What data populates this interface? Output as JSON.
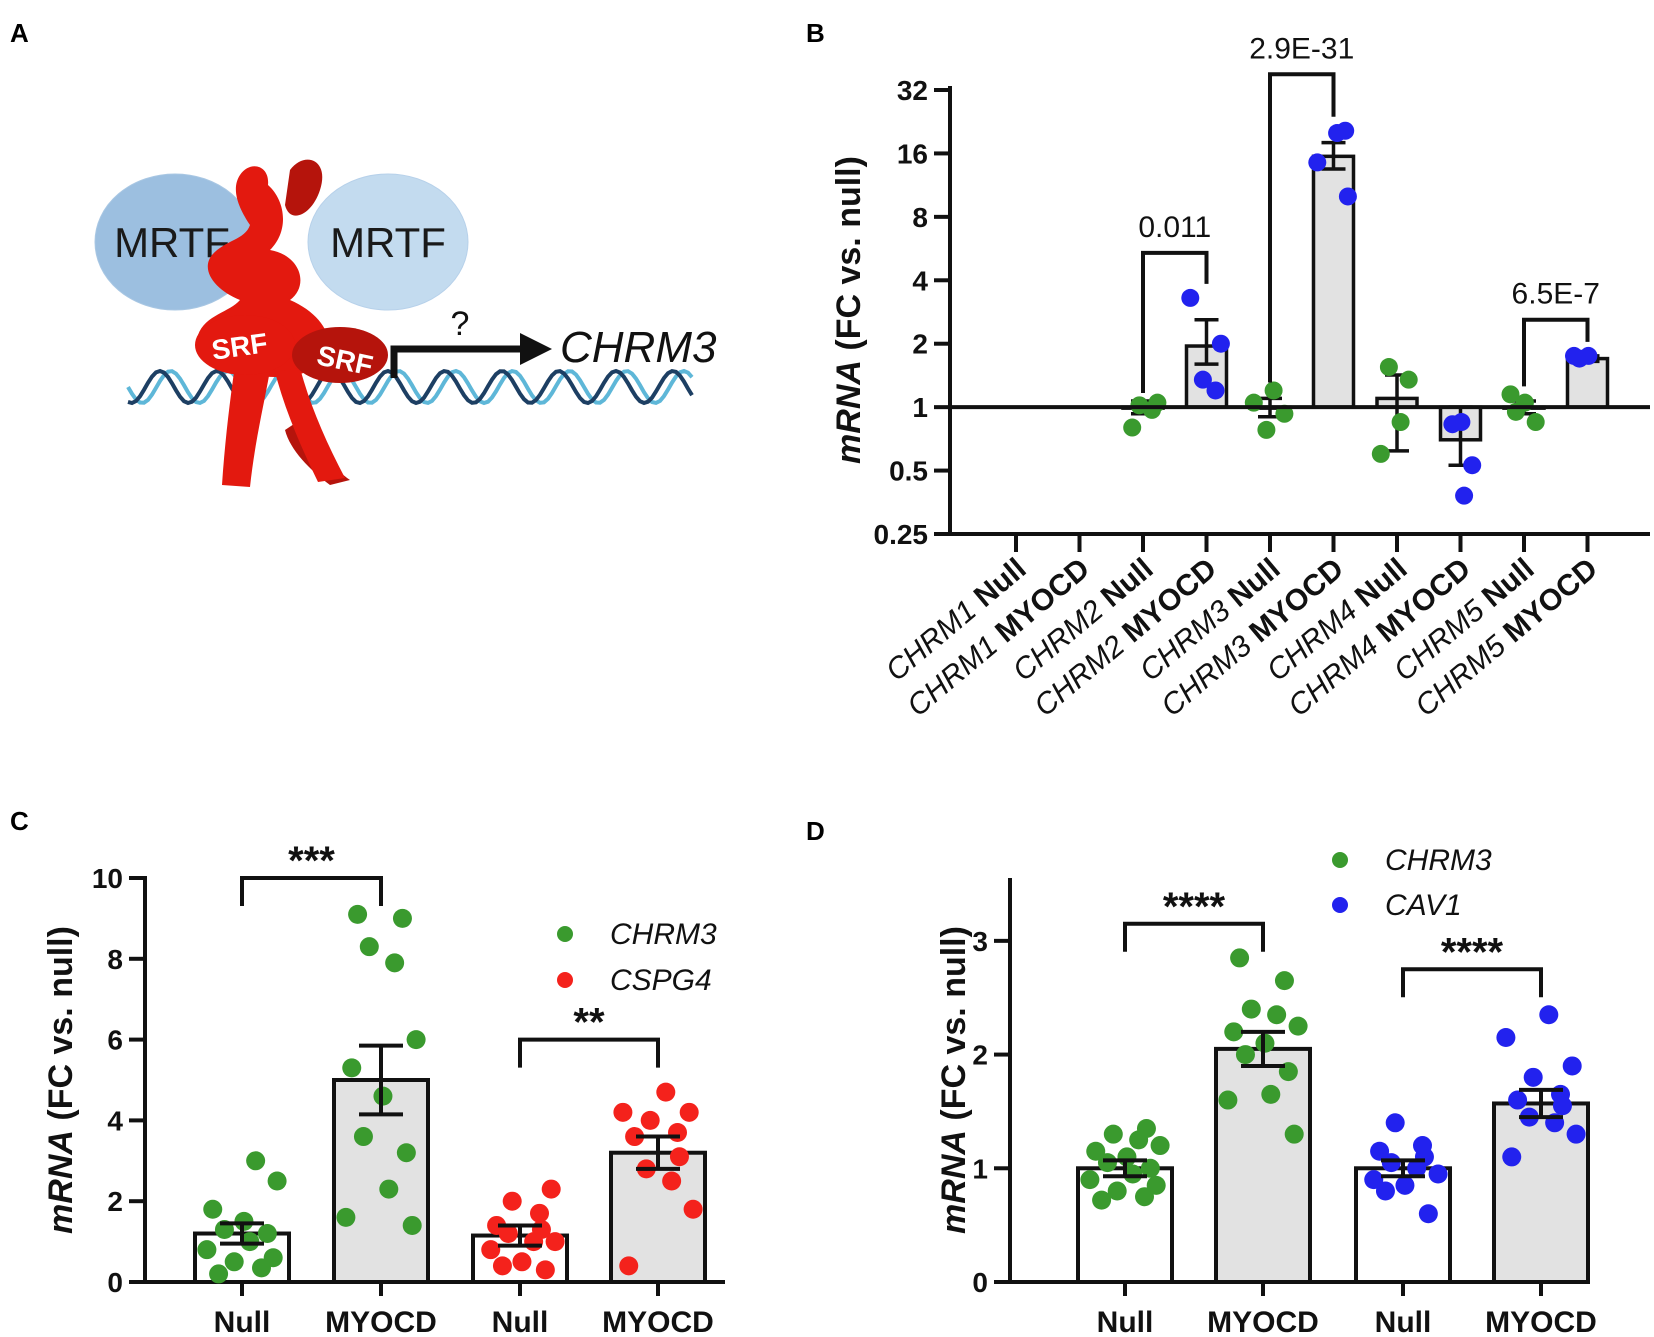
{
  "panel_labels": {
    "a": "A",
    "b": "B",
    "c": "C",
    "d": "D"
  },
  "colors": {
    "green": "#3a9a2e",
    "red": "#f4221c",
    "blue": "#2222ee",
    "bar_fill": "#e2e2e2",
    "black": "#111111",
    "mrtf_dark": "#9cbfe0",
    "mrtf_light": "#c3dbef",
    "srf": "#e3190f",
    "srf_dark": "#b5140c",
    "dna1": "#5eb7d8",
    "dna2": "#1d3f63"
  },
  "diagram": {
    "mrtf_left": "MRTF",
    "mrtf_right": "MRTF",
    "srf_left": "SRF",
    "srf_right": "SRF",
    "question": "?",
    "target_gene": "CHRM3"
  },
  "chart_data": [
    {
      "panel": "B",
      "type": "bar",
      "yscale": "log2",
      "ylabel_italic": "mRNA",
      "ylabel_rest": " (FC vs. null)",
      "yticks": [
        0.25,
        0.5,
        1,
        2,
        4,
        8,
        16,
        32
      ],
      "ytick_labels": [
        "0.25",
        "0.5",
        "1",
        "2",
        "4",
        "8",
        "16",
        "32"
      ],
      "ylim": [
        0.25,
        32
      ],
      "baseline": 1,
      "categories": [
        {
          "gene": "CHRM1",
          "cond": "Null"
        },
        {
          "gene": "CHRM1",
          "cond": "MYOCD"
        },
        {
          "gene": "CHRM2",
          "cond": "Null"
        },
        {
          "gene": "CHRM2",
          "cond": "MYOCD"
        },
        {
          "gene": "CHRM3",
          "cond": "Null"
        },
        {
          "gene": "CHRM3",
          "cond": "MYOCD"
        },
        {
          "gene": "CHRM4",
          "cond": "Null"
        },
        {
          "gene": "CHRM4",
          "cond": "MYOCD"
        },
        {
          "gene": "CHRM5",
          "cond": "Null"
        },
        {
          "gene": "CHRM5",
          "cond": "MYOCD"
        }
      ],
      "bars": [
        {
          "index": 2,
          "mean": 1.0,
          "sem": [
            0.93,
            1.07
          ],
          "color": "green",
          "points": [
            0.8,
            0.97,
            1.02,
            1.05
          ]
        },
        {
          "index": 3,
          "mean": 1.95,
          "sem": [
            1.6,
            2.6
          ],
          "color": "blue",
          "points": [
            1.2,
            1.35,
            2.0,
            3.3
          ]
        },
        {
          "index": 4,
          "mean": 1.0,
          "sem": [
            0.9,
            1.1
          ],
          "color": "green",
          "points": [
            0.78,
            0.93,
            1.05,
            1.2
          ]
        },
        {
          "index": 5,
          "mean": 15.5,
          "sem": [
            13.5,
            18.0
          ],
          "color": "blue",
          "points": [
            10.0,
            14.5,
            20.0,
            20.5
          ]
        },
        {
          "index": 6,
          "mean": 1.1,
          "sem": [
            0.62,
            1.42
          ],
          "color": "green",
          "points": [
            0.6,
            0.85,
            1.35,
            1.55
          ]
        },
        {
          "index": 7,
          "mean": 0.7,
          "sem": [
            0.53,
            1.0
          ],
          "color": "blue",
          "points": [
            0.38,
            0.53,
            0.83,
            0.85
          ]
        },
        {
          "index": 8,
          "mean": 1.0,
          "sem": [
            0.93,
            1.07
          ],
          "color": "green",
          "points": [
            0.85,
            0.95,
            1.05,
            1.15
          ]
        },
        {
          "index": 9,
          "mean": 1.7,
          "sem": [
            1.65,
            1.75
          ],
          "color": "blue",
          "points": [
            1.7,
            1.75,
            1.75
          ]
        }
      ],
      "comparisons": [
        {
          "from": 2,
          "to": 3,
          "label": "0.011",
          "level": 5.4
        },
        {
          "from": 4,
          "to": 5,
          "label": "2.9E-31",
          "level": 38
        },
        {
          "from": 8,
          "to": 9,
          "label": "6.5E-7",
          "level": 2.6
        }
      ]
    },
    {
      "panel": "C",
      "type": "bar",
      "ylabel_italic": "mRNA",
      "ylabel_rest": " (FC vs. null)",
      "yticks": [
        0,
        2,
        4,
        6,
        8,
        10
      ],
      "ylim": [
        0,
        10
      ],
      "categories": [
        "Null",
        "MYOCD",
        "Null",
        "MYOCD"
      ],
      "legend": [
        "CHRM3",
        "CSPG4"
      ],
      "bars": [
        {
          "index": 0,
          "mean": 1.2,
          "sem": [
            0.95,
            1.45
          ],
          "color": "green",
          "fill": "white",
          "points": [
            0.2,
            0.35,
            0.5,
            0.6,
            0.8,
            1.0,
            1.2,
            1.3,
            1.5,
            1.8,
            2.5,
            3.0
          ]
        },
        {
          "index": 1,
          "mean": 5.0,
          "sem": [
            4.15,
            5.85
          ],
          "color": "green",
          "fill": "gray",
          "points": [
            1.4,
            1.6,
            2.3,
            3.2,
            3.6,
            4.6,
            5.3,
            6.0,
            7.9,
            8.3,
            9.0,
            9.1
          ]
        },
        {
          "index": 2,
          "mean": 1.15,
          "sem": [
            0.9,
            1.4
          ],
          "color": "red",
          "fill": "white",
          "points": [
            0.3,
            0.4,
            0.5,
            0.8,
            1.0,
            1.0,
            1.2,
            1.3,
            1.4,
            1.7,
            2.0,
            2.3
          ]
        },
        {
          "index": 3,
          "mean": 3.2,
          "sem": [
            2.8,
            3.6
          ],
          "color": "red",
          "fill": "gray",
          "points": [
            0.4,
            1.8,
            2.5,
            2.8,
            3.1,
            3.6,
            3.7,
            4.0,
            4.2,
            4.2,
            4.7
          ]
        }
      ],
      "comparisons": [
        {
          "from": 0,
          "to": 1,
          "label": "***",
          "level": 10.0
        },
        {
          "from": 2,
          "to": 3,
          "label": "**",
          "level": 6.0
        }
      ]
    },
    {
      "panel": "D",
      "type": "bar",
      "ylabel_italic": "mRNA",
      "ylabel_rest": " (FC vs. null)",
      "yticks": [
        0,
        1,
        2,
        3
      ],
      "ylim": [
        0,
        3.5
      ],
      "categories": [
        "Null",
        "MYOCD",
        "Null",
        "MYOCD"
      ],
      "legend": [
        "CHRM3",
        "CAV1"
      ],
      "bars": [
        {
          "index": 0,
          "mean": 1.0,
          "sem": [
            0.93,
            1.07
          ],
          "color": "green",
          "fill": "white",
          "points": [
            0.72,
            0.75,
            0.8,
            0.85,
            0.9,
            0.95,
            1.0,
            1.05,
            1.1,
            1.15,
            1.2,
            1.25,
            1.3,
            1.35
          ]
        },
        {
          "index": 1,
          "mean": 2.05,
          "sem": [
            1.9,
            2.2
          ],
          "color": "green",
          "fill": "gray",
          "points": [
            1.3,
            1.6,
            1.65,
            1.85,
            2.0,
            2.1,
            2.2,
            2.25,
            2.35,
            2.4,
            2.65,
            2.85
          ]
        },
        {
          "index": 2,
          "mean": 1.0,
          "sem": [
            0.93,
            1.07
          ],
          "color": "blue",
          "fill": "white",
          "points": [
            0.6,
            0.8,
            0.85,
            0.9,
            0.95,
            1.0,
            1.05,
            1.1,
            1.15,
            1.2,
            1.4
          ]
        },
        {
          "index": 3,
          "mean": 1.57,
          "sem": [
            1.45,
            1.69
          ],
          "color": "blue",
          "fill": "gray",
          "points": [
            1.1,
            1.3,
            1.4,
            1.45,
            1.55,
            1.6,
            1.65,
            1.8,
            1.9,
            2.15,
            2.35
          ]
        }
      ],
      "comparisons": [
        {
          "from": 0,
          "to": 1,
          "label": "****",
          "level": 3.15
        },
        {
          "from": 2,
          "to": 3,
          "label": "****",
          "level": 2.75
        }
      ]
    }
  ]
}
